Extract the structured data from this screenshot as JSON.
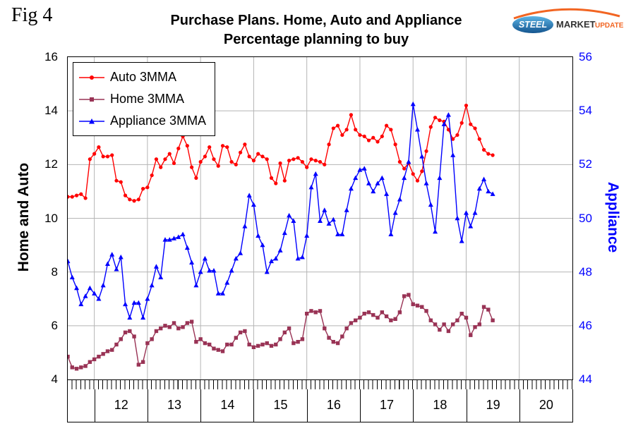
{
  "fig_label": "Fig 4",
  "logo": {
    "steel": "STEEL",
    "market": "MARKET",
    "update": "UPDATE",
    "blue": "#1b75bb",
    "blue_light": "#5bb3e4",
    "orange": "#f26522",
    "dark": "#333333"
  },
  "chart_data": {
    "type": "line",
    "title": "Purchase Plans. Home, Auto and Appliance",
    "subtitle": "Percentage planning to buy",
    "x_min": 2011.5,
    "x_max": 2021.0,
    "x_start": 2011.5,
    "x_step": 0.0833333,
    "grid": true,
    "gridline_color": "#b5b5b5",
    "legend_position": "top-left",
    "left_axis": {
      "title": "Home and Auto",
      "min": 4,
      "max": 16,
      "tick_step": 2,
      "ticks": [
        16,
        14,
        12,
        10,
        8,
        6,
        4
      ],
      "color": "#000000"
    },
    "right_axis": {
      "title": "Appliance",
      "min": 44,
      "max": 56,
      "tick_step": 2,
      "ticks": [
        56,
        54,
        52,
        50,
        48,
        46,
        44
      ],
      "color": "#0000ff"
    },
    "x_axis": {
      "year_start": 2012,
      "year_labels": [
        "12",
        "13",
        "14",
        "15",
        "16",
        "17",
        "18",
        "19",
        "20"
      ]
    },
    "series": [
      {
        "name": "Auto 3MMA",
        "axis": "left",
        "color": "#ff0000",
        "marker": "circle",
        "values": [
          10.8,
          10.8,
          10.85,
          10.9,
          10.75,
          12.2,
          12.4,
          12.65,
          12.3,
          12.3,
          12.35,
          11.4,
          11.35,
          10.85,
          10.7,
          10.65,
          10.7,
          11.1,
          11.15,
          11.6,
          12.2,
          11.9,
          12.2,
          12.4,
          12.05,
          12.6,
          13.05,
          12.7,
          11.9,
          11.5,
          12.1,
          12.3,
          12.65,
          12.2,
          11.95,
          12.7,
          12.65,
          12.1,
          12.0,
          12.45,
          12.75,
          12.3,
          12.15,
          12.4,
          12.3,
          12.2,
          11.5,
          11.3,
          12.05,
          11.4,
          12.15,
          12.2,
          12.25,
          12.1,
          11.9,
          12.2,
          12.15,
          12.1,
          12.0,
          12.75,
          13.35,
          13.45,
          13.1,
          13.3,
          13.85,
          13.3,
          13.1,
          13.05,
          12.9,
          13.0,
          12.85,
          13.05,
          13.45,
          13.3,
          12.75,
          12.1,
          11.85,
          12.05,
          11.65,
          11.4,
          11.75,
          12.5,
          13.4,
          13.75,
          13.65,
          13.6,
          13.3,
          12.95,
          13.1,
          13.55,
          14.2,
          13.5,
          13.35,
          12.95,
          12.55,
          12.4,
          12.35
        ]
      },
      {
        "name": "Home 3MMA",
        "axis": "left",
        "color": "#993355",
        "marker": "square",
        "values": [
          4.85,
          4.45,
          4.4,
          4.45,
          4.5,
          4.65,
          4.75,
          4.85,
          4.95,
          5.05,
          5.1,
          5.3,
          5.5,
          5.75,
          5.8,
          5.6,
          4.55,
          4.65,
          5.35,
          5.5,
          5.8,
          5.9,
          6.0,
          5.95,
          6.1,
          5.9,
          5.95,
          6.1,
          6.15,
          5.4,
          5.5,
          5.35,
          5.3,
          5.15,
          5.1,
          5.05,
          5.3,
          5.3,
          5.55,
          5.75,
          5.8,
          5.3,
          5.2,
          5.25,
          5.3,
          5.35,
          5.25,
          5.3,
          5.5,
          5.75,
          5.9,
          5.35,
          5.4,
          5.5,
          6.45,
          6.55,
          6.5,
          6.55,
          5.9,
          5.55,
          5.4,
          5.35,
          5.6,
          5.9,
          6.1,
          6.2,
          6.3,
          6.45,
          6.5,
          6.4,
          6.3,
          6.5,
          6.35,
          6.2,
          6.25,
          6.5,
          7.1,
          7.15,
          6.8,
          6.75,
          6.7,
          6.55,
          6.2,
          6.05,
          5.85,
          6.05,
          5.8,
          6.05,
          6.2,
          6.45,
          6.3,
          5.65,
          5.95,
          6.05,
          6.7,
          6.6,
          6.2
        ]
      },
      {
        "name": "Appliance 3MMA",
        "axis": "right",
        "color": "#0000ff",
        "marker": "triangle",
        "values": [
          48.4,
          47.8,
          47.4,
          46.8,
          47.1,
          47.4,
          47.2,
          47.0,
          47.5,
          48.3,
          48.65,
          48.1,
          48.55,
          46.8,
          46.3,
          46.85,
          46.85,
          46.3,
          47.0,
          47.5,
          48.2,
          47.8,
          49.2,
          49.2,
          49.25,
          49.3,
          49.4,
          48.9,
          48.35,
          47.5,
          48.0,
          48.5,
          48.05,
          48.05,
          47.2,
          47.2,
          47.6,
          48.05,
          48.5,
          48.7,
          49.7,
          50.85,
          50.5,
          49.35,
          49.0,
          48.0,
          48.4,
          48.5,
          48.8,
          49.45,
          50.1,
          49.9,
          48.5,
          48.55,
          49.35,
          51.15,
          51.65,
          49.9,
          50.3,
          49.8,
          49.95,
          49.4,
          49.4,
          50.3,
          51.1,
          51.5,
          51.8,
          51.85,
          51.3,
          51.0,
          51.3,
          51.5,
          50.9,
          49.4,
          50.2,
          50.7,
          51.5,
          52.1,
          54.25,
          53.3,
          52.3,
          51.3,
          50.5,
          49.5,
          51.5,
          53.5,
          53.85,
          52.35,
          50.0,
          49.15,
          50.2,
          49.7,
          50.2,
          51.1,
          51.45,
          51.0,
          50.9
        ]
      }
    ]
  }
}
